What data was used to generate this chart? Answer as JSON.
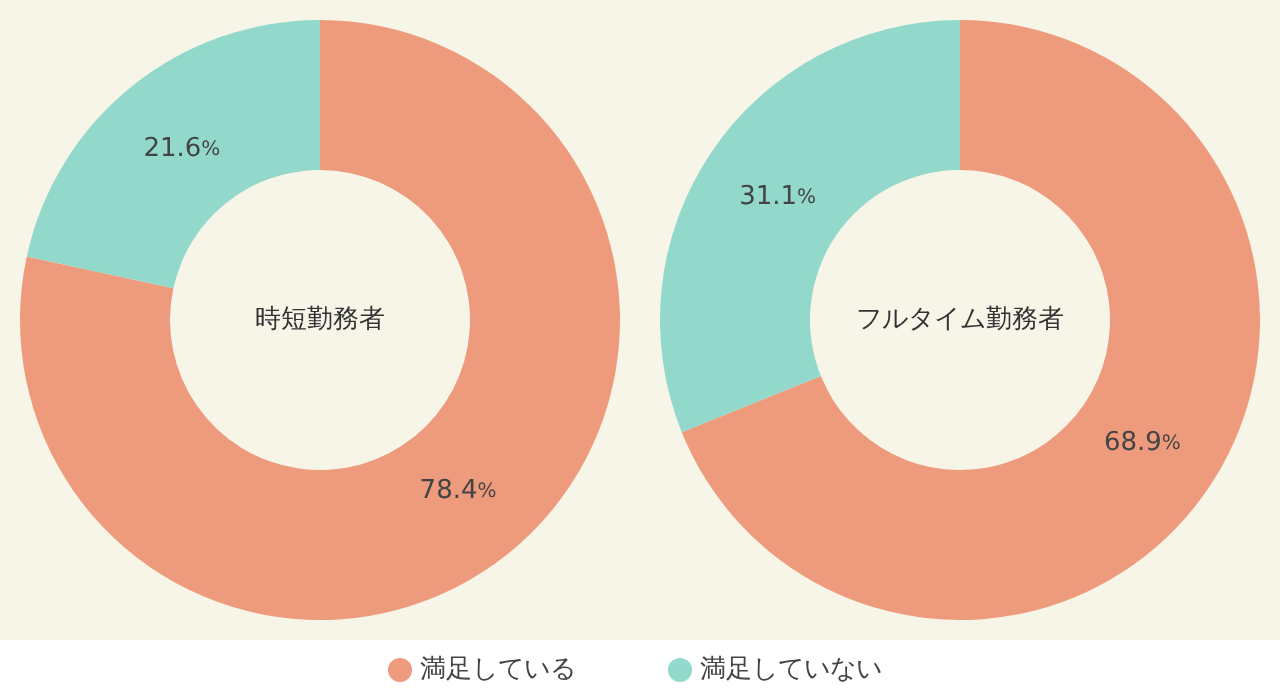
{
  "chart_data": [
    {
      "type": "donut",
      "title": "時短勤務者",
      "categories": [
        "満足している",
        "満足していない"
      ],
      "values": [
        78.4,
        21.6
      ],
      "colors": [
        "#ee9b7d",
        "#92d9cb"
      ],
      "value_labels": [
        "78.4%",
        "21.6%"
      ],
      "legend": "bottom"
    },
    {
      "type": "donut",
      "title": "フルタイム勤務者",
      "categories": [
        null,
        null
      ],
      "values": [
        68.9,
        31.1
      ],
      "colors": [
        "#ee9b7d",
        "#92d9cb"
      ],
      "value_labels": [
        "68.9%",
        "31.1%"
      ]
    }
  ]
}
